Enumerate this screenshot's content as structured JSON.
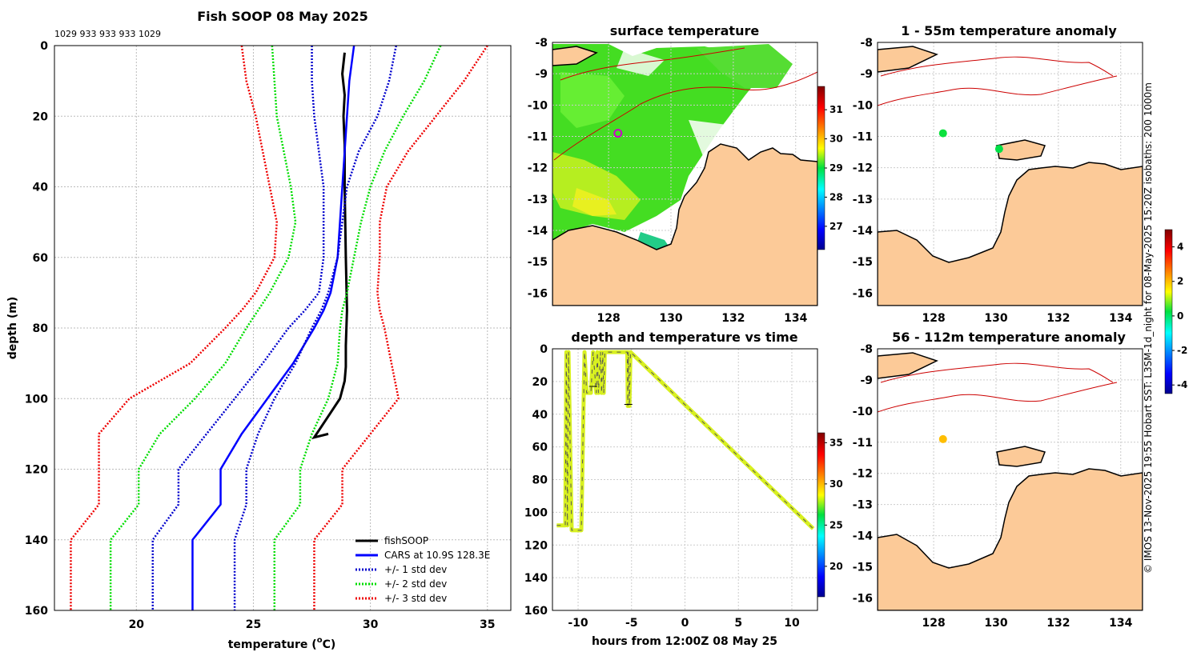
{
  "chart_data": [
    {
      "type": "line",
      "id": "profile",
      "title": "Fish SOOP 08 May 2025",
      "subtitle": "1029 933 933 933 1029",
      "xlabel": "temperature (°C)",
      "xlabel_main": "temperature (",
      "xlabel_sup": "o",
      "xlabel_tail": "C)",
      "ylabel": "depth (m)",
      "xlim": [
        16.5,
        36
      ],
      "ylim": [
        0,
        160
      ],
      "xticks": [
        20,
        25,
        30,
        35
      ],
      "yticks": [
        0,
        20,
        40,
        60,
        80,
        100,
        120,
        140,
        160
      ],
      "depths": [
        0,
        10,
        20,
        30,
        40,
        50,
        60,
        70,
        75,
        80,
        90,
        100,
        110,
        120,
        130,
        140,
        160
      ],
      "series": [
        {
          "name": "fishSOOP",
          "color": "#000000",
          "dash": "solid",
          "x": [
            28.9,
            28.8,
            28.9,
            28.85,
            28.9,
            28.9,
            28.95,
            29.0,
            28.95,
            28.95,
            28.9,
            28.7,
            28.3,
            27.9,
            27.6,
            28.2
          ],
          "y": [
            2,
            8,
            14,
            20,
            28,
            40,
            60,
            75,
            85,
            91,
            95,
            100,
            104,
            108,
            111,
            110
          ]
        },
        {
          "name": "CARS at 10.9S 128.3E",
          "color": "#0000ff",
          "dash": "solid",
          "values": [
            29.3,
            29.1,
            29.0,
            28.9,
            28.8,
            28.7,
            28.6,
            28.3,
            28.0,
            27.6,
            26.7,
            25.6,
            24.5,
            23.6,
            23.6,
            22.4,
            22.4
          ]
        },
        {
          "name": "+/- 1 std dev",
          "color": "#0000cc",
          "dash": "dotted",
          "values": [
            31.1,
            30.8,
            30.3,
            29.5,
            29.0,
            28.8,
            28.6,
            28.2,
            27.9,
            27.5,
            26.8,
            25.9,
            25.2,
            24.7,
            24.7,
            24.2,
            24.2
          ]
        },
        {
          "name": "+/- 1 std dev (lower)",
          "color": "#0000cc",
          "dash": "dotted",
          "hidden_legend": true,
          "values": [
            27.5,
            27.5,
            27.6,
            27.8,
            28.0,
            28.0,
            28.0,
            27.8,
            27.2,
            26.5,
            25.4,
            24.2,
            23.0,
            21.8,
            21.8,
            20.7,
            20.7
          ]
        },
        {
          "name": "+/- 2 std dev",
          "color": "#00dd00",
          "dash": "dotted",
          "values": [
            33.0,
            32.3,
            31.4,
            30.6,
            30.0,
            29.6,
            29.3,
            29.0,
            28.8,
            28.7,
            28.6,
            28.2,
            27.5,
            27.0,
            27.0,
            25.9,
            25.9
          ]
        },
        {
          "name": "+/- 2 std dev (lower)",
          "color": "#00dd00",
          "dash": "dotted",
          "hidden_legend": true,
          "values": [
            25.8,
            25.9,
            26.0,
            26.3,
            26.6,
            26.8,
            26.5,
            25.7,
            25.2,
            24.7,
            23.8,
            22.5,
            21.0,
            20.1,
            20.1,
            18.9,
            18.9
          ]
        },
        {
          "name": "+/- 3 std dev",
          "color": "#ee0000",
          "dash": "dotted",
          "values": [
            35.0,
            34.0,
            32.8,
            31.6,
            30.7,
            30.4,
            30.4,
            30.3,
            30.4,
            30.6,
            30.9,
            31.2,
            30.0,
            28.8,
            28.8,
            27.6,
            27.6
          ]
        },
        {
          "name": "+/- 3 std dev (lower)",
          "color": "#ee0000",
          "dash": "dotted",
          "hidden_legend": true,
          "values": [
            24.5,
            24.7,
            25.1,
            25.4,
            25.7,
            26.0,
            25.9,
            25.1,
            24.5,
            23.8,
            22.3,
            19.7,
            18.4,
            18.4,
            18.4,
            17.2,
            17.2
          ]
        }
      ]
    },
    {
      "type": "heatmap",
      "id": "sst_map",
      "title": "surface temperature",
      "xlim": [
        126.2,
        134.7
      ],
      "ylim": [
        -16.4,
        -8
      ],
      "xticks": [
        128,
        130,
        132,
        134
      ],
      "yticks": [
        -8,
        -9,
        -10,
        -11,
        -12,
        -13,
        -14,
        -15,
        -16
      ],
      "colorbar_ticks": [
        27,
        28,
        29,
        30,
        31
      ],
      "colorbar_range": [
        26.2,
        31.8
      ],
      "marker": {
        "lon": 128.3,
        "lat": -10.9
      }
    },
    {
      "type": "scatter",
      "id": "depth_time",
      "title": "depth and temperature vs time",
      "xlabel": "hours from 12:00Z 08 May 25",
      "xlim": [
        -12.4,
        12.4
      ],
      "ylim": [
        0,
        160
      ],
      "xticks": [
        -10,
        -5,
        0,
        5,
        10
      ],
      "yticks": [
        0,
        20,
        40,
        60,
        80,
        100,
        120,
        140,
        160
      ],
      "colorbar_ticks": [
        20,
        25,
        30,
        35
      ],
      "colorbar_range": [
        16.3,
        36.2
      ],
      "trace_x": [
        -12.0,
        -11.2,
        -11.1,
        -11.0,
        -10.9,
        -10.6,
        -10.5,
        -10.4,
        -10.3,
        -10.2,
        -10.1,
        -10.0,
        -9.9,
        -9.8,
        -9.7,
        -9.4,
        -9.2,
        -8.8,
        -8.6,
        -8.3,
        -8.2,
        -8.1,
        -7.9,
        -7.8,
        -7.7,
        -7.6,
        -7.5,
        -5.4,
        -5.35,
        -5.3,
        -5.2,
        -5.1,
        12.0
      ],
      "trace_y": [
        108,
        108,
        2,
        108,
        2,
        111,
        111,
        111,
        111,
        111,
        111,
        111,
        111,
        111,
        111,
        2,
        27,
        27,
        2,
        27,
        2,
        27,
        2,
        27,
        2,
        27,
        2,
        2,
        35,
        2,
        35,
        2,
        110
      ],
      "labels": [
        {
          "x": -8.6,
          "y": 23
        },
        {
          "x": -5.3,
          "y": 34
        }
      ]
    },
    {
      "type": "heatmap",
      "id": "anom1",
      "title": "1 - 55m temperature anomaly",
      "xlim": [
        126.2,
        134.7
      ],
      "ylim": [
        -16.4,
        -8
      ],
      "xticks": [
        128,
        130,
        132,
        134
      ],
      "yticks": [
        -8,
        -9,
        -10,
        -11,
        -12,
        -13,
        -14,
        -15,
        -16
      ],
      "points": [
        {
          "lon": 128.3,
          "lat": -10.9,
          "value": 0.3
        },
        {
          "lon": 130.1,
          "lat": -11.4,
          "value": 0.2
        }
      ]
    },
    {
      "type": "heatmap",
      "id": "anom2",
      "title": "56 - 112m temperature anomaly",
      "xlim": [
        126.2,
        134.7
      ],
      "ylim": [
        -16.4,
        -8
      ],
      "xticks": [
        128,
        130,
        132,
        134
      ],
      "yticks": [
        -8,
        -9,
        -10,
        -11,
        -12,
        -13,
        -14,
        -15,
        -16
      ],
      "points": [
        {
          "lon": 128.3,
          "lat": -10.9,
          "value": 2.0
        }
      ],
      "colorbar_ticks": [
        -4,
        -2,
        0,
        2,
        4
      ],
      "colorbar_range": [
        -4.5,
        5
      ]
    }
  ],
  "legend": [
    "fishSOOP",
    "CARS at 10.9S 128.3E",
    "+/- 1 std dev",
    "+/- 2 std dev",
    "+/- 3 std dev"
  ],
  "side_note": "© IMOS 13-Nov-2025 19:55 Hobart SST: L3SM-1d_night for 08-May-2025 15:20Z isobaths: 200  1000m",
  "colors": {
    "land": "#fcca98",
    "coast": "#000000",
    "isobath": "#cc0000",
    "grid": "#bbbbbb"
  }
}
